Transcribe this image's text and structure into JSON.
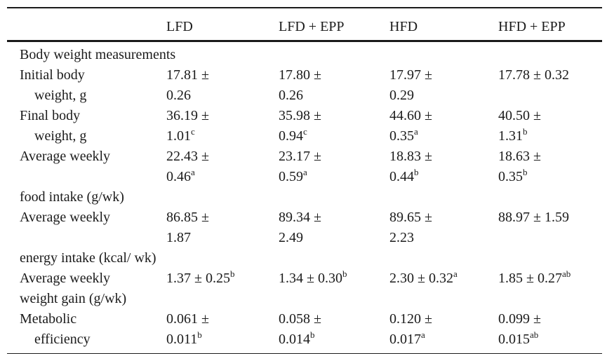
{
  "table": {
    "columns": [
      "",
      "LFD",
      "LFD + EPP",
      "HFD",
      "HFD + EPP"
    ],
    "rows": [
      {
        "type": "section",
        "label": "Body weight measurements"
      },
      {
        "type": "data",
        "label_lines": [
          {
            "t": "Initial body",
            "indent": false
          },
          {
            "t": "weight, g",
            "indent": true
          }
        ],
        "cells": [
          [
            "17.81 ±",
            "0.26"
          ],
          [
            "17.80 ±",
            "0.26"
          ],
          [
            "17.97 ±",
            "0.29"
          ],
          [
            "17.78 ± 0.32"
          ]
        ]
      },
      {
        "type": "data",
        "label_lines": [
          {
            "t": "Final body",
            "indent": false
          },
          {
            "t": "weight, g",
            "indent": true
          }
        ],
        "cells": [
          [
            "36.19 ±",
            "1.01^c"
          ],
          [
            "35.98 ±",
            "0.94^c"
          ],
          [
            "44.60 ±",
            "0.35^a"
          ],
          [
            "40.50 ±",
            "1.31^b"
          ]
        ]
      },
      {
        "type": "data",
        "label_lines": [
          {
            "t": "Average weekly",
            "indent": false
          },
          {
            "t": "",
            "indent": false
          },
          {
            "t": "food intake (g/wk)",
            "indent": false
          }
        ],
        "cells": [
          [
            "22.43 ±",
            "0.46^a"
          ],
          [
            "23.17 ±",
            "0.59^a"
          ],
          [
            "18.83 ±",
            "0.44^b"
          ],
          [
            "18.63 ±",
            "0.35^b"
          ]
        ]
      },
      {
        "type": "data",
        "label_lines": [
          {
            "t": "Average weekly",
            "indent": false
          },
          {
            "t": "",
            "indent": false
          },
          {
            "t": "energy intake (kcal/ wk)",
            "indent": false
          }
        ],
        "cells": [
          [
            "86.85 ±",
            "1.87"
          ],
          [
            "89.34 ±",
            "2.49"
          ],
          [
            "89.65 ±",
            "2.23"
          ],
          [
            "88.97 ± 1.59"
          ]
        ]
      },
      {
        "type": "data",
        "label_lines": [
          {
            "t": "Average weekly",
            "indent": false
          },
          {
            "t": "weight gain (g/wk)",
            "indent": false
          }
        ],
        "cells": [
          [
            "1.37 ± 0.25^b"
          ],
          [
            "1.34 ± 0.30^b"
          ],
          [
            "2.30 ± 0.32^a"
          ],
          [
            "1.85 ± 0.27^ab"
          ]
        ]
      },
      {
        "type": "data",
        "label_lines": [
          {
            "t": "Metabolic",
            "indent": false
          },
          {
            "t": "efficiency",
            "indent": true
          }
        ],
        "cells": [
          [
            "0.061 ±",
            "0.011^b"
          ],
          [
            "0.058 ±",
            "0.014^b"
          ],
          [
            "0.120 ±",
            "0.017^a"
          ],
          [
            "0.099 ±",
            "0.015^ab"
          ]
        ]
      }
    ]
  },
  "colors": {
    "text": "#1b1b1b",
    "rule": "#1b1b1b",
    "background": "#ffffff"
  }
}
